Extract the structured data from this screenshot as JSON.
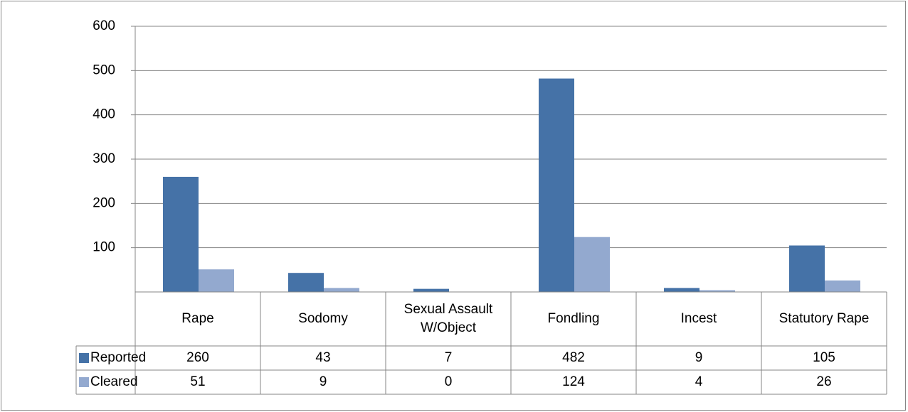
{
  "chart_data": {
    "type": "bar",
    "categories": [
      "Rape",
      "Sodomy",
      "Sexual Assault W/Object",
      "Fondling",
      "Incest",
      "Statutory Rape"
    ],
    "series": [
      {
        "name": "Reported",
        "color": "#4572a7",
        "values": [
          260,
          43,
          7,
          482,
          9,
          105
        ]
      },
      {
        "name": "Cleared",
        "color": "#93a9cf",
        "values": [
          51,
          9,
          0,
          124,
          4,
          26
        ]
      }
    ],
    "ylim": [
      0,
      600
    ],
    "yticks": [
      100,
      200,
      300,
      400,
      500,
      600
    ],
    "grid": true,
    "data_table": true
  }
}
